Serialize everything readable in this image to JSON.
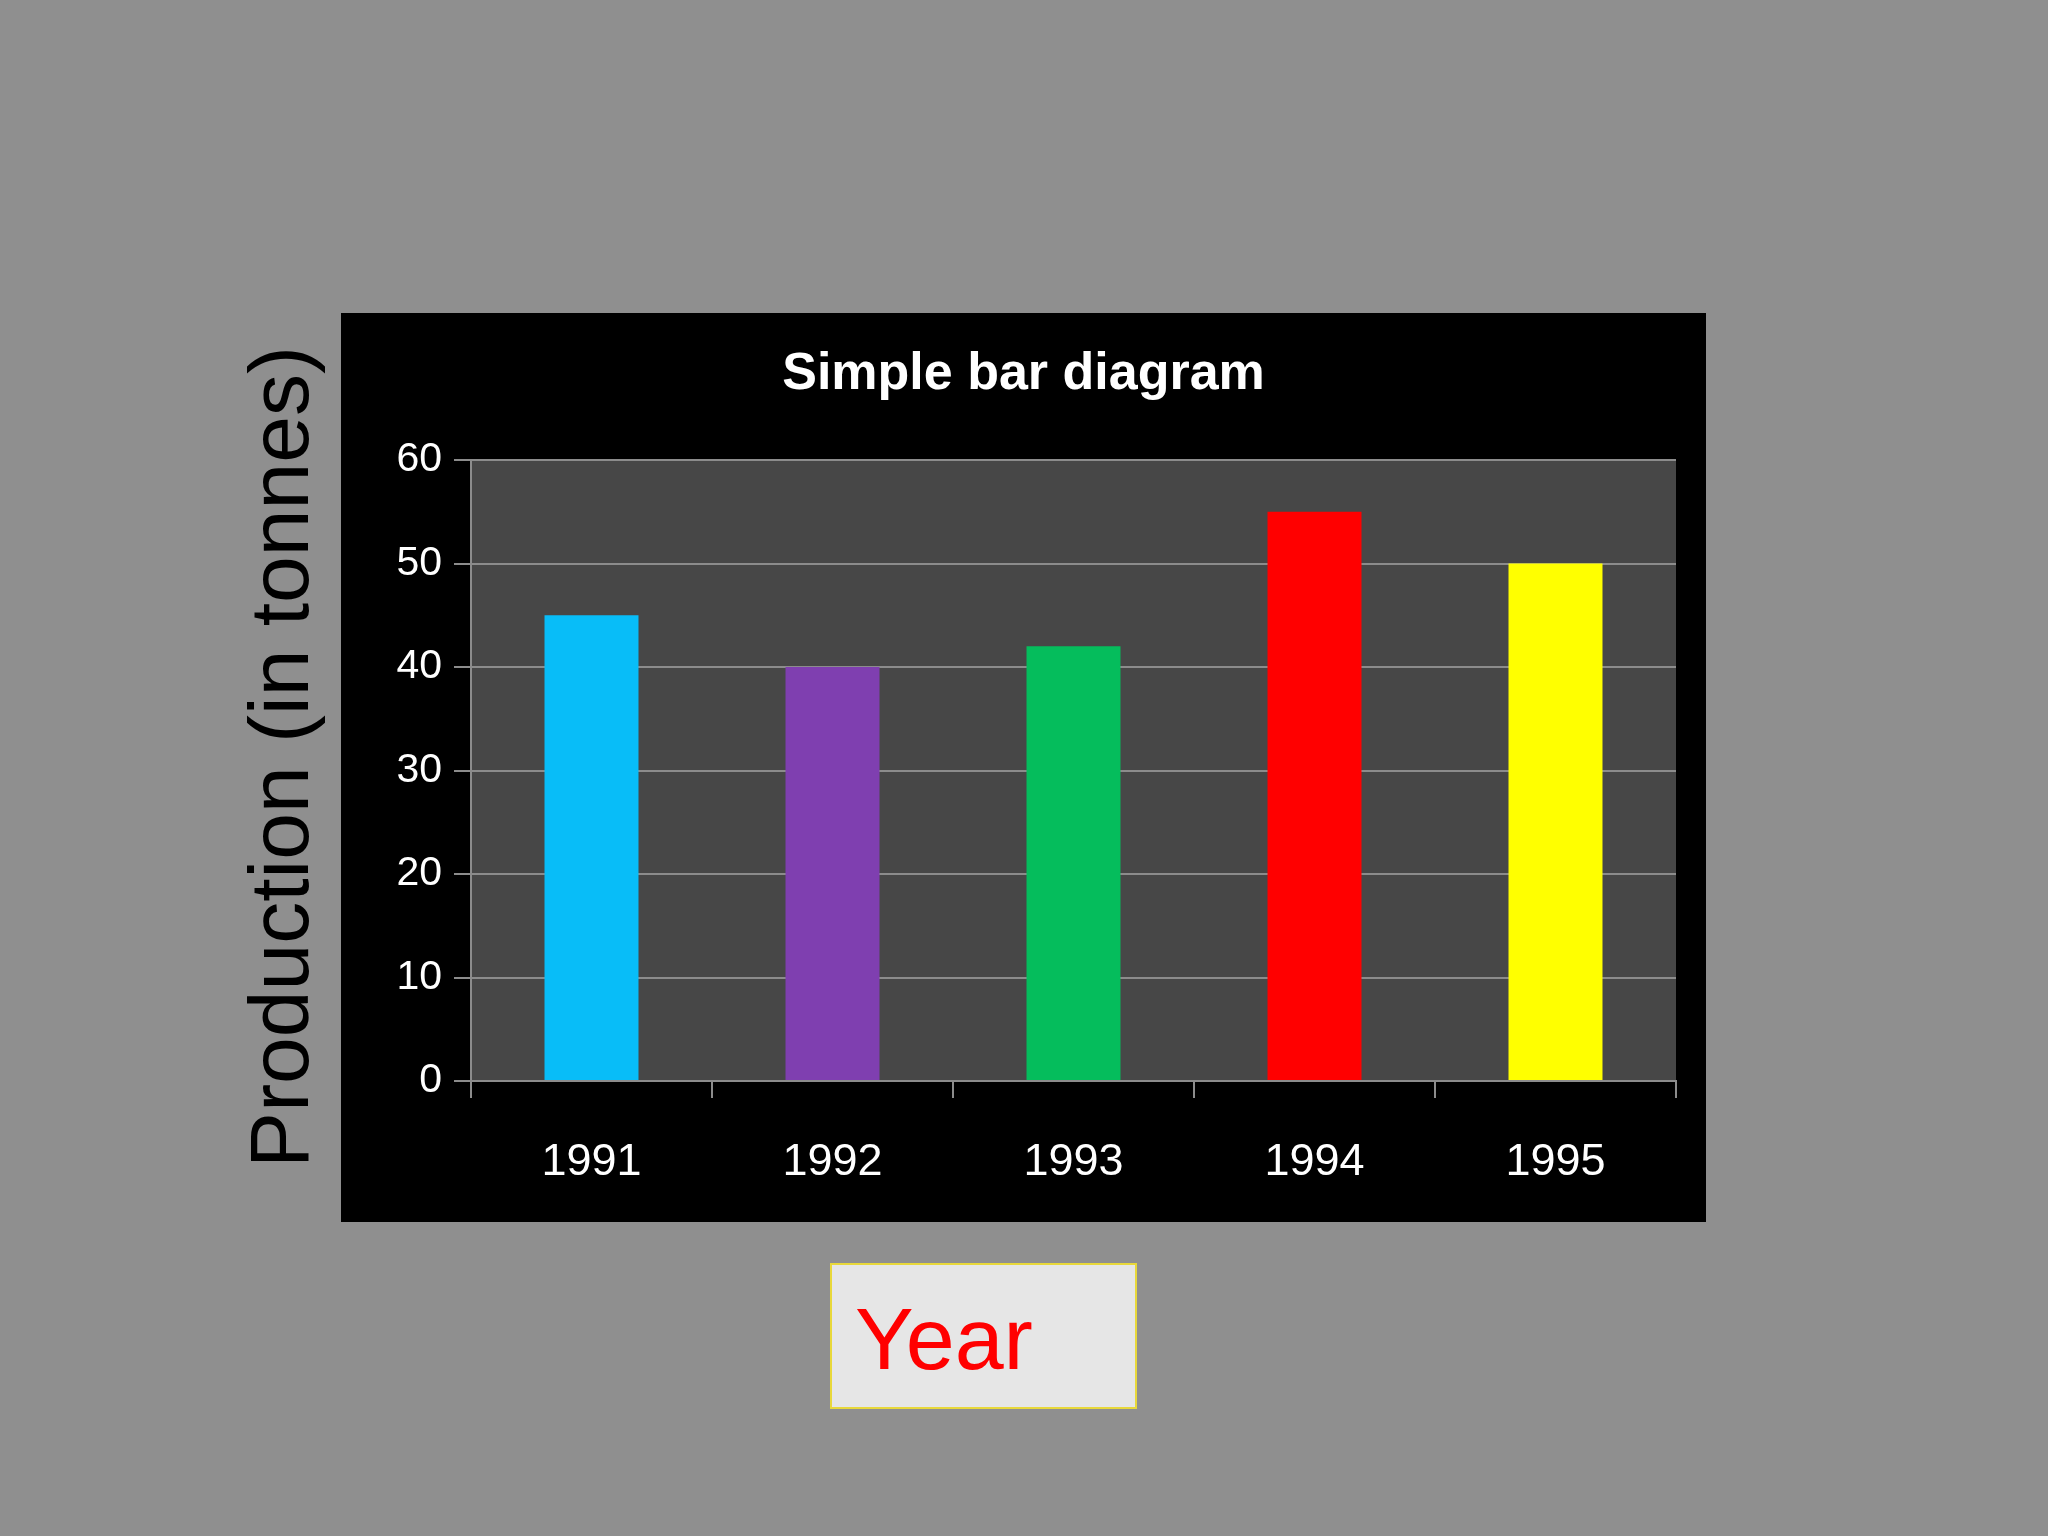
{
  "chart_data": {
    "type": "bar",
    "title": "Simple bar diagram",
    "xlabel": "Year",
    "ylabel": "Production (in tonnes)",
    "categories": [
      "1991",
      "1992",
      "1993",
      "1994",
      "1995"
    ],
    "values": [
      45,
      40,
      42,
      55,
      50
    ],
    "colors": [
      "#08bdf8",
      "#7f3fb0",
      "#05bd5c",
      "#ff0000",
      "#ffff00"
    ],
    "ylim": [
      0,
      60
    ],
    "yticks": [
      0,
      10,
      20,
      30,
      40,
      50,
      60
    ],
    "grid": "y"
  }
}
